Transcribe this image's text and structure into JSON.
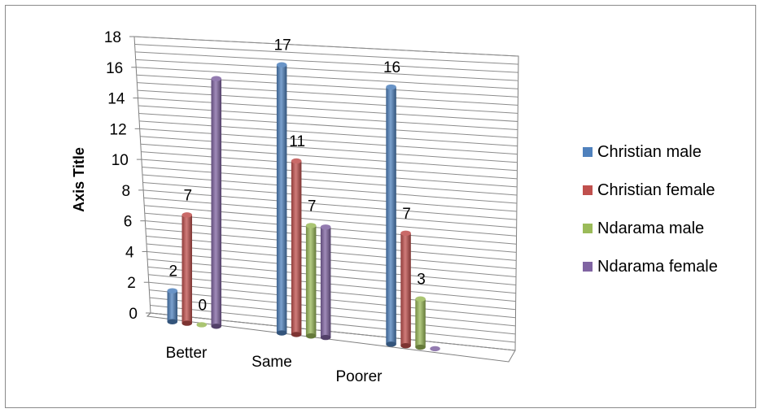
{
  "chart_data": {
    "type": "bar",
    "categories": [
      "Better",
      "Same",
      "Poorer"
    ],
    "series": [
      {
        "name": "Christian male",
        "values": [
          2,
          17,
          16
        ]
      },
      {
        "name": "Christian female",
        "values": [
          7,
          11,
          7
        ]
      },
      {
        "name": "Ndarama male",
        "values": [
          0,
          7,
          3
        ]
      },
      {
        "name": "Ndarama female",
        "values": [
          16,
          7,
          0
        ]
      }
    ],
    "ylabel": "Axis Title",
    "xlabel": "",
    "ylim": [
      0,
      18
    ],
    "yticks": [
      0,
      2,
      4,
      6,
      8,
      10,
      12,
      14,
      16,
      18
    ],
    "data_labels": [
      [
        "2",
        "17",
        "16"
      ],
      [
        "7",
        "11",
        "7"
      ],
      [
        "0",
        "7",
        "3"
      ],
      [
        "",
        "",
        ""
      ]
    ],
    "grid": true,
    "legend_position": "right",
    "colors": [
      "#4f81bd",
      "#c0504d",
      "#9bbb59",
      "#8064a2"
    ]
  }
}
